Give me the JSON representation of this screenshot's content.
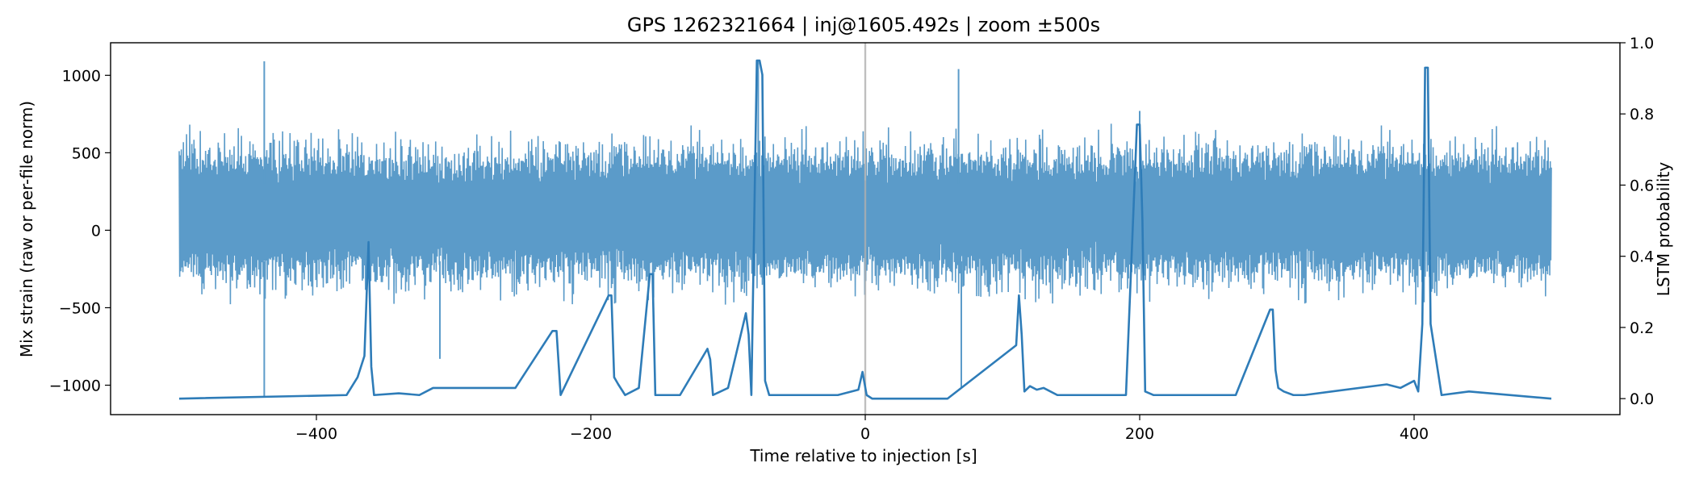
{
  "chart_data": {
    "type": "line",
    "title": "GPS 1262321664 | inj@1605.492s | zoom ±500s",
    "xlabel": "Time relative to injection [s]",
    "ylabel_left": "Mix strain (raw or per-file norm)",
    "ylabel_right": "LSTM probability",
    "xlim": [
      -550,
      550
    ],
    "ylim_left": [
      -1190,
      1210
    ],
    "ylim_right": [
      -0.045,
      1.0
    ],
    "x_ticks": [
      -400,
      -200,
      0,
      200,
      400
    ],
    "x_tick_labels": [
      "−400",
      "−200",
      "0",
      "200",
      "400"
    ],
    "y_left_ticks": [
      -1000,
      -500,
      0,
      500,
      1000
    ],
    "y_left_tick_labels": [
      "−1000",
      "−500",
      "0",
      "500",
      "1000"
    ],
    "y_right_ticks": [
      0.0,
      0.2,
      0.4,
      0.6,
      0.8,
      1.0
    ],
    "y_right_tick_labels": [
      "0.0",
      "0.2",
      "0.4",
      "0.6",
      "0.8",
      "1.0"
    ],
    "injection_marker_x": 0,
    "grid": false,
    "colors": {
      "strain": "#5b9bc9",
      "probability": "#2e7cb8",
      "injection_line": "#b0b0b0"
    },
    "series": [
      {
        "axis": "left",
        "style": "dense oscillation",
        "x_range": [
          -500,
          500
        ],
        "typical_band": [
          -450,
          650
        ],
        "spikes": [
          {
            "x": -438,
            "y": 1090
          },
          {
            "x": -78,
            "y": 1090
          },
          {
            "x": 68,
            "y": 1040
          },
          {
            "x": 200,
            "y": 770
          },
          {
            "x": 408,
            "y": 1020
          },
          {
            "x": -438,
            "y": -1080
          },
          {
            "x": 70,
            "y": -1020
          },
          {
            "x": -310,
            "y": -830
          }
        ]
      },
      {
        "axis": "right",
        "x": [
          -500,
          -378,
          -370,
          -365,
          -362,
          -360,
          -358,
          -340,
          -325,
          -315,
          -255,
          -228,
          -225,
          -222,
          -187,
          -185,
          -183,
          -180,
          -175,
          -165,
          -157,
          -155,
          -153,
          -135,
          -115,
          -113,
          -111,
          -100,
          -87,
          -85,
          -83,
          -79,
          -77,
          -75,
          -73,
          -70,
          -20,
          -5,
          -2,
          1,
          5,
          60,
          110,
          112,
          114,
          116,
          120,
          125,
          130,
          140,
          190,
          198,
          200,
          202,
          204,
          210,
          270,
          295,
          297,
          299,
          301,
          305,
          312,
          320,
          380,
          390,
          400,
          403,
          406,
          408,
          410,
          412,
          420,
          440,
          500
        ],
        "y": [
          0.0,
          0.01,
          0.06,
          0.12,
          0.44,
          0.09,
          0.01,
          0.015,
          0.01,
          0.03,
          0.03,
          0.19,
          0.19,
          0.01,
          0.29,
          0.29,
          0.06,
          0.04,
          0.01,
          0.03,
          0.35,
          0.35,
          0.01,
          0.01,
          0.14,
          0.11,
          0.01,
          0.03,
          0.24,
          0.18,
          0.01,
          0.95,
          0.95,
          0.91,
          0.05,
          0.01,
          0.01,
          0.025,
          0.075,
          0.01,
          0.0,
          0.0,
          0.15,
          0.29,
          0.18,
          0.02,
          0.035,
          0.025,
          0.03,
          0.01,
          0.01,
          0.77,
          0.77,
          0.5,
          0.02,
          0.01,
          0.01,
          0.25,
          0.25,
          0.08,
          0.03,
          0.02,
          0.01,
          0.01,
          0.04,
          0.03,
          0.05,
          0.02,
          0.21,
          0.93,
          0.93,
          0.21,
          0.01,
          0.02,
          0.0
        ]
      }
    ]
  }
}
